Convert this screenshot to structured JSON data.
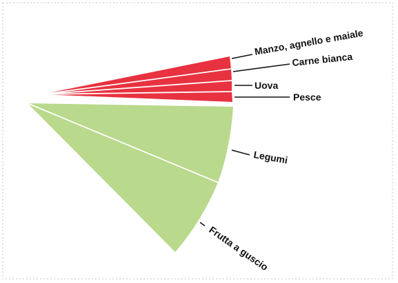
{
  "chart_data": {
    "type": "pie",
    "slices": [
      {
        "label": "Manzo, agnello e maiale",
        "group": "animal"
      },
      {
        "label": "Carne bianca",
        "group": "animal"
      },
      {
        "label": "Uova",
        "group": "animal"
      },
      {
        "label": "Pesce",
        "group": "animal"
      },
      {
        "label": "Legumi",
        "group": "plant"
      },
      {
        "label": "Frutta a guscio",
        "group": "plant"
      }
    ],
    "colors": {
      "animal": "#e8323f",
      "plant": "#b9d98c",
      "divider": "#ffffff",
      "leader": "#111111",
      "border": "#cfcfcf"
    }
  }
}
